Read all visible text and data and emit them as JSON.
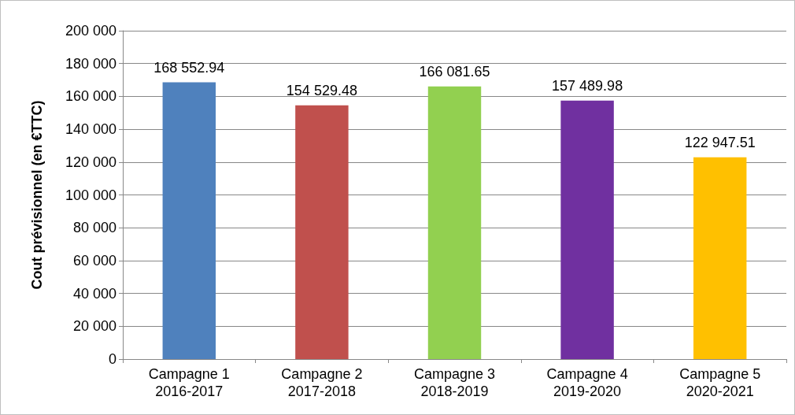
{
  "chart_data": {
    "type": "bar",
    "ylabel": "Cout prévisionnel (en €TTC)",
    "categories": [
      "Campagne 1\n2016-2017",
      "Campagne 2\n2017-2018",
      "Campagne 3\n2018-2019",
      "Campagne 4\n2019-2020",
      "Campagne 5\n2020-2021"
    ],
    "values": [
      168552.94,
      154529.48,
      166081.65,
      157489.98,
      122947.51
    ],
    "value_labels": [
      "168 552.94",
      "154 529.48",
      "166 081.65",
      "157 489.98",
      "122 947.51"
    ],
    "colors": [
      "#4f81bd",
      "#c0504d",
      "#92d050",
      "#7030a0",
      "#ffc000"
    ],
    "ylim": [
      0,
      200000
    ],
    "yticks": [
      0,
      {
        "value": 20000,
        "label": "20 000"
      },
      {
        "value": 40000,
        "label": "40 000"
      },
      {
        "value": 60000,
        "label": "60 000"
      },
      {
        "value": 80000,
        "label": "80 000"
      },
      {
        "value": 100000,
        "label": "100 000"
      },
      {
        "value": 120000,
        "label": "120 000"
      },
      {
        "value": 140000,
        "label": "140 000"
      },
      {
        "value": 160000,
        "label": "160 000"
      },
      {
        "value": 180000,
        "label": "180 000"
      },
      {
        "value": 200000,
        "label": "200 000"
      }
    ],
    "grid": "y"
  }
}
